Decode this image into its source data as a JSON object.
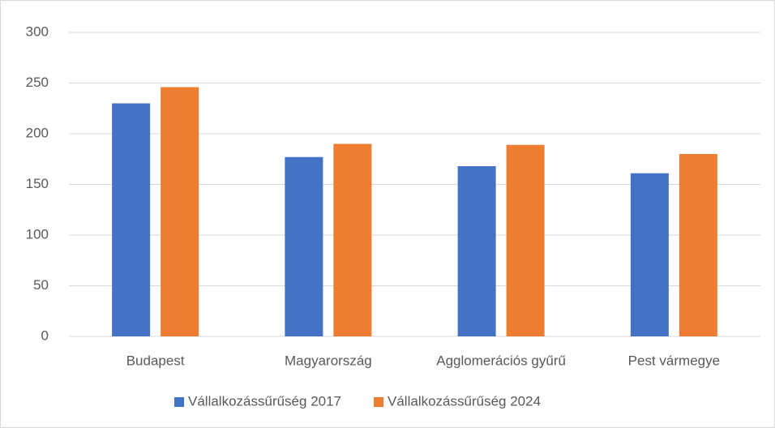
{
  "chart_data": {
    "type": "bar",
    "categories": [
      "Budapest",
      "Magyarország",
      "Agglomerációs gyűrű",
      "Pest vármegye"
    ],
    "series": [
      {
        "name": "Vállalkozássűrűség 2017",
        "color": "#4472c4",
        "values": [
          230,
          177,
          168,
          161
        ]
      },
      {
        "name": "Vállalkozássűrűség 2024",
        "color": "#ed7d31",
        "values": [
          246,
          190,
          189,
          180
        ]
      }
    ],
    "ylim": [
      0,
      300
    ],
    "yticks": [
      0,
      50,
      100,
      150,
      200,
      250,
      300
    ],
    "grid": true,
    "legend": "bottom"
  }
}
